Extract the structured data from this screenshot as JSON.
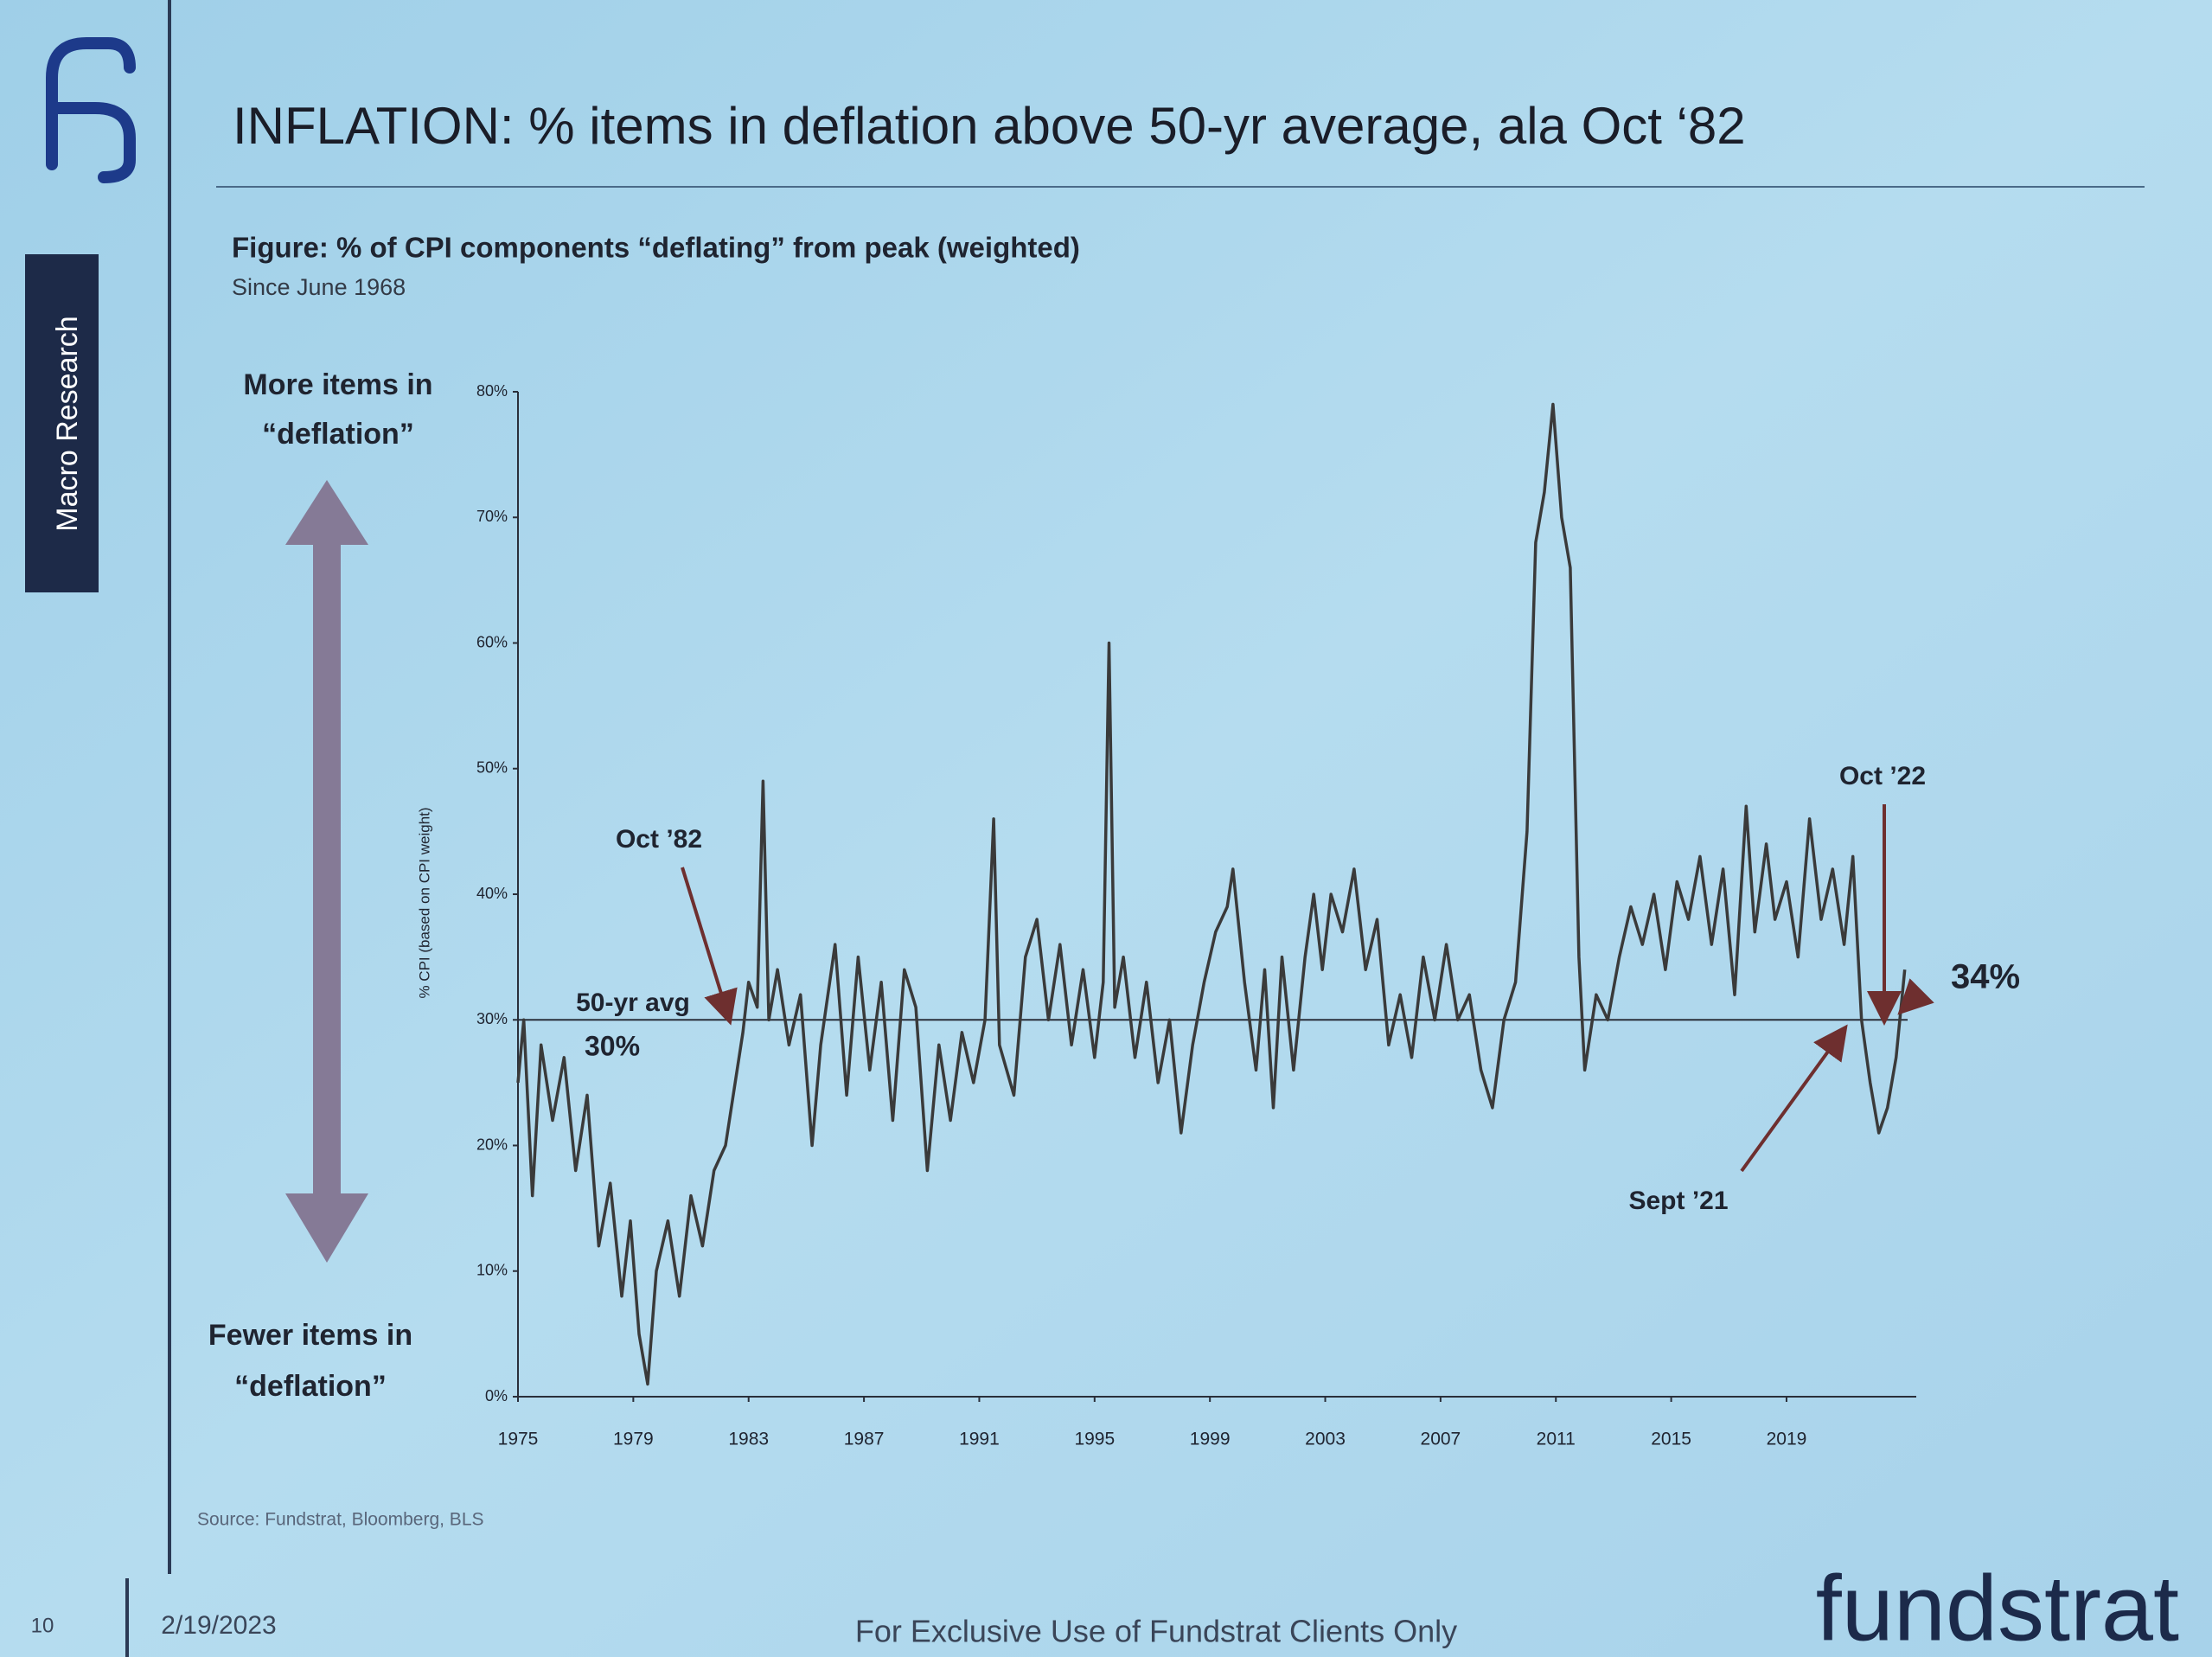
{
  "sidebar": {
    "label": "Macro Research"
  },
  "header": {
    "title": "INFLATION: % items in deflation above 50-yr average, ala Oct ‘82"
  },
  "chart_data": {
    "type": "line",
    "title": "Figure: % of CPI components “deflating” from peak (weighted)",
    "subtitle": "Since June 1968",
    "y_label": "% CPI (based on CPI weight)",
    "axis_notes": {
      "top": [
        "More items in",
        "“deflation”"
      ],
      "bottom": [
        "Fewer items in",
        "“deflation”"
      ]
    },
    "color": "#3a3a3a",
    "xlim": [
      1975,
      2023.5
    ],
    "xticks": [
      1975,
      1979,
      1983,
      1987,
      1991,
      1995,
      1999,
      2003,
      2007,
      2011,
      2015,
      2019
    ],
    "ylim": [
      0,
      80
    ],
    "yticks": [
      {
        "value": 0,
        "label": "0%"
      },
      {
        "value": 10,
        "label": "10%"
      },
      {
        "value": 20,
        "label": "20%"
      },
      {
        "value": 30,
        "label": "30%"
      },
      {
        "value": 40,
        "label": "40%"
      },
      {
        "value": 50,
        "label": "50%"
      },
      {
        "value": 60,
        "label": "60%"
      },
      {
        "value": 70,
        "label": "70%"
      },
      {
        "value": 80,
        "label": "80%"
      }
    ],
    "x": [
      1975,
      1975.2,
      1975.5,
      1975.8,
      1976.2,
      1976.6,
      1977,
      1977.4,
      1977.8,
      1978.2,
      1978.6,
      1978.9,
      1979.2,
      1979.5,
      1979.8,
      1980.2,
      1980.6,
      1981,
      1981.4,
      1981.8,
      1982.2,
      1982.6,
      1982.8,
      1983,
      1983.3,
      1983.5,
      1983.7,
      1984,
      1984.4,
      1984.8,
      1985.2,
      1985.5,
      1986,
      1986.4,
      1986.8,
      1987.2,
      1987.6,
      1988,
      1988.4,
      1988.8,
      1989.2,
      1989.6,
      1990,
      1990.4,
      1990.8,
      1991.2,
      1991.5,
      1991.7,
      1992.2,
      1992.6,
      1993,
      1993.4,
      1993.8,
      1994.2,
      1994.6,
      1995,
      1995.3,
      1995.5,
      1995.7,
      1996,
      1996.4,
      1996.8,
      1997.2,
      1997.6,
      1998,
      1998.4,
      1998.8,
      1999.2,
      1999.6,
      1999.8,
      2000.2,
      2000.6,
      2000.9,
      2001.2,
      2001.5,
      2001.9,
      2002.3,
      2002.6,
      2002.9,
      2003.2,
      2003.6,
      2004,
      2004.4,
      2004.8,
      2005.2,
      2005.6,
      2006,
      2006.4,
      2006.8,
      2007.2,
      2007.6,
      2008,
      2008.4,
      2008.8,
      2009.2,
      2009.6,
      2010,
      2010.3,
      2010.6,
      2010.9,
      2011.2,
      2011.5,
      2011.8,
      2012,
      2012.4,
      2012.8,
      2013.2,
      2013.6,
      2014,
      2014.4,
      2014.8,
      2015.2,
      2015.6,
      2016,
      2016.4,
      2016.8,
      2017.2,
      2017.6,
      2017.9,
      2018.3,
      2018.6,
      2019,
      2019.4,
      2019.8,
      2020.2,
      2020.6,
      2021,
      2021.3,
      2021.6,
      2021.9,
      2022.2,
      2022.5,
      2022.8,
      2023.1
    ],
    "values": [
      25,
      30,
      16,
      28,
      22,
      27,
      18,
      24,
      12,
      17,
      8,
      14,
      5,
      1,
      10,
      14,
      8,
      16,
      12,
      18,
      20,
      26,
      29,
      33,
      31,
      49,
      30,
      34,
      28,
      32,
      20,
      28,
      36,
      24,
      35,
      26,
      33,
      22,
      34,
      31,
      18,
      28,
      22,
      29,
      25,
      30,
      46,
      28,
      24,
      35,
      38,
      30,
      36,
      28,
      34,
      27,
      33,
      60,
      31,
      35,
      27,
      33,
      25,
      30,
      21,
      28,
      33,
      37,
      39,
      42,
      33,
      26,
      34,
      23,
      35,
      26,
      35,
      40,
      34,
      40,
      37,
      42,
      34,
      38,
      28,
      32,
      27,
      35,
      30,
      36,
      30,
      32,
      26,
      23,
      30,
      33,
      45,
      68,
      72,
      79,
      70,
      66,
      35,
      26,
      32,
      30,
      35,
      39,
      36,
      40,
      34,
      41,
      38,
      43,
      36,
      42,
      32,
      47,
      37,
      44,
      38,
      41,
      35,
      46,
      38,
      42,
      36,
      43,
      30,
      25,
      21,
      23,
      27,
      34
    ],
    "reference_line": {
      "value": 30,
      "label": "50-yr avg",
      "value_label": "30%"
    },
    "annotations": [
      "Oct ’82",
      "Oct ’22",
      "34%",
      "Sept ’21"
    ],
    "source": "Source: Fundstrat, Bloomberg, BLS"
  },
  "footer": {
    "page": "10",
    "date": "2/19/2023",
    "notice": "For Exclusive Use of Fundstrat Clients Only",
    "brand": "fundstrat"
  }
}
